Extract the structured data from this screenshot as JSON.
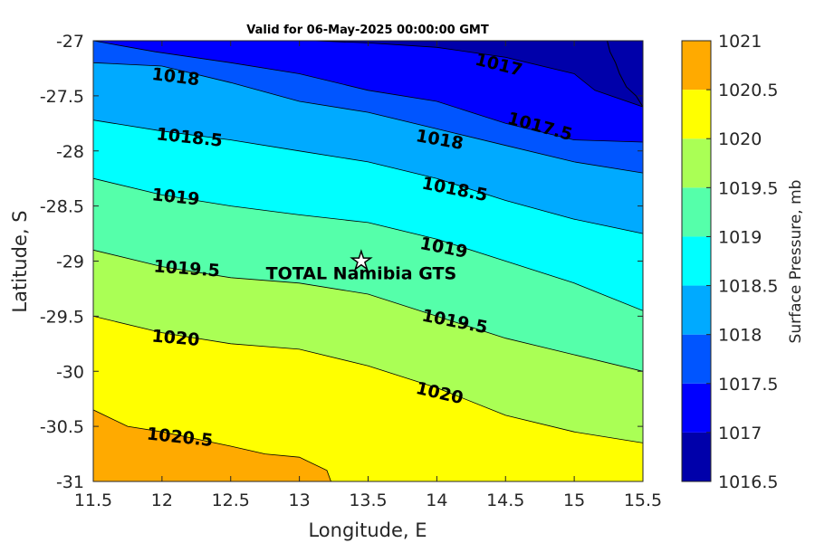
{
  "chart_data": {
    "type": "contour",
    "title": "Valid for 06-May-2025 00:00:00 GMT",
    "xlabel": "Longitude, E",
    "ylabel": "Latitude, S",
    "xlim": [
      11.5,
      15.5
    ],
    "ylim": [
      -31,
      -27
    ],
    "xticks": [
      "11.5",
      "12",
      "12.5",
      "13",
      "13.5",
      "14",
      "14.5",
      "15",
      "15.5"
    ],
    "yticks": [
      "-27",
      "-27.5",
      "-28",
      "-28.5",
      "-29",
      "-29.5",
      "-30",
      "-30.5",
      "-31"
    ],
    "colorbar": {
      "label": "Surface Pressure, mb",
      "levels": [
        1016.5,
        1017,
        1017.5,
        1018,
        1018.5,
        1019,
        1019.5,
        1020,
        1020.5,
        1021
      ],
      "tick_labels": [
        "1021",
        "1020.5",
        "1020",
        "1019.5",
        "1019",
        "1018.5",
        "1018",
        "1017.5",
        "1017",
        "1016.5"
      ],
      "colors": [
        "#0000aa",
        "#0000ff",
        "#0055ff",
        "#00aaff",
        "#00ffff",
        "#55ffaa",
        "#aaff55",
        "#ffff00",
        "#ffaa00",
        "#ff5500"
      ]
    },
    "contours": [
      {
        "level": 1017,
        "label": "1017",
        "points": [
          [
            13.1,
            -27.0
          ],
          [
            13.5,
            -27.02
          ],
          [
            14.0,
            -27.06
          ],
          [
            14.5,
            -27.15
          ],
          [
            15.0,
            -27.3
          ],
          [
            15.15,
            -27.45
          ],
          [
            15.5,
            -27.6
          ]
        ]
      },
      {
        "level": 1017.5,
        "label": "1017.5",
        "points": [
          [
            11.5,
            -27.0
          ],
          [
            11.95,
            -27.1
          ],
          [
            12.5,
            -27.2
          ],
          [
            13.0,
            -27.3
          ],
          [
            13.5,
            -27.45
          ],
          [
            14.0,
            -27.55
          ],
          [
            14.5,
            -27.75
          ],
          [
            15.0,
            -27.9
          ],
          [
            15.5,
            -27.92
          ]
        ]
      },
      {
        "level": 1018,
        "label": "1018",
        "points": [
          [
            11.5,
            -27.2
          ],
          [
            12.0,
            -27.23
          ],
          [
            12.5,
            -27.38
          ],
          [
            13.0,
            -27.55
          ],
          [
            13.5,
            -27.65
          ],
          [
            14.0,
            -27.8
          ],
          [
            14.5,
            -27.95
          ],
          [
            15.0,
            -28.1
          ],
          [
            15.5,
            -28.2
          ]
        ]
      },
      {
        "level": 1018.5,
        "label": "1018.5",
        "points": [
          [
            11.5,
            -27.72
          ],
          [
            12.0,
            -27.82
          ],
          [
            12.5,
            -27.9
          ],
          [
            13.0,
            -28.0
          ],
          [
            13.5,
            -28.1
          ],
          [
            14.0,
            -28.25
          ],
          [
            14.5,
            -28.45
          ],
          [
            15.0,
            -28.62
          ],
          [
            15.5,
            -28.75
          ]
        ]
      },
      {
        "level": 1019,
        "label": "1019",
        "points": [
          [
            11.5,
            -28.25
          ],
          [
            12.0,
            -28.4
          ],
          [
            12.5,
            -28.5
          ],
          [
            13.0,
            -28.58
          ],
          [
            13.5,
            -28.65
          ],
          [
            14.0,
            -28.8
          ],
          [
            14.5,
            -29.0
          ],
          [
            15.0,
            -29.2
          ],
          [
            15.5,
            -29.45
          ]
        ]
      },
      {
        "level": 1019.5,
        "label": "1019.5",
        "points": [
          [
            11.5,
            -28.9
          ],
          [
            12.0,
            -29.05
          ],
          [
            12.5,
            -29.15
          ],
          [
            13.0,
            -29.2
          ],
          [
            13.5,
            -29.3
          ],
          [
            14.0,
            -29.5
          ],
          [
            14.5,
            -29.7
          ],
          [
            15.0,
            -29.85
          ],
          [
            15.5,
            -30.0
          ]
        ]
      },
      {
        "level": 1020,
        "label": "1020",
        "points": [
          [
            11.5,
            -29.5
          ],
          [
            12.0,
            -29.65
          ],
          [
            12.5,
            -29.75
          ],
          [
            13.0,
            -29.8
          ],
          [
            13.5,
            -29.95
          ],
          [
            14.0,
            -30.15
          ],
          [
            14.5,
            -30.4
          ],
          [
            15.0,
            -30.55
          ],
          [
            15.5,
            -30.65
          ]
        ]
      },
      {
        "level": 1020.5,
        "label": "1020.5",
        "points": [
          [
            11.5,
            -30.35
          ],
          [
            11.75,
            -30.5
          ],
          [
            12.0,
            -30.55
          ],
          [
            12.5,
            -30.68
          ],
          [
            12.75,
            -30.75
          ],
          [
            13.0,
            -30.78
          ],
          [
            13.2,
            -30.9
          ],
          [
            13.23,
            -31.0
          ]
        ]
      }
    ],
    "contour_labels": [
      {
        "text": "1017",
        "lon": 14.45,
        "lat": -27.22,
        "angle": 14
      },
      {
        "text": "1017.5",
        "lon": 14.75,
        "lat": -27.78,
        "angle": 15
      },
      {
        "text": "1018",
        "lon": 12.1,
        "lat": -27.33,
        "angle": 7
      },
      {
        "text": "1018",
        "lon": 14.02,
        "lat": -27.9,
        "angle": 10
      },
      {
        "text": "1018.5",
        "lon": 12.2,
        "lat": -27.88,
        "angle": 6
      },
      {
        "text": "1018.5",
        "lon": 14.13,
        "lat": -28.35,
        "angle": 11
      },
      {
        "text": "1019",
        "lon": 12.1,
        "lat": -28.42,
        "angle": 6
      },
      {
        "text": "1019",
        "lon": 14.05,
        "lat": -28.88,
        "angle": 11
      },
      {
        "text": "1019.5",
        "lon": 12.18,
        "lat": -29.07,
        "angle": 4
      },
      {
        "text": "1019.5",
        "lon": 14.13,
        "lat": -29.55,
        "angle": 11
      },
      {
        "text": "1020",
        "lon": 12.1,
        "lat": -29.7,
        "angle": 5
      },
      {
        "text": "1020",
        "lon": 14.02,
        "lat": -30.2,
        "angle": 13
      },
      {
        "text": "1020.5",
        "lon": 12.13,
        "lat": -30.6,
        "angle": 6
      }
    ],
    "site": {
      "name": "TOTAL Namibia GTS",
      "lon": 13.45,
      "lat": -29.0
    },
    "coastline": [
      [
        15.24,
        -27.0
      ],
      [
        15.26,
        -27.1
      ],
      [
        15.3,
        -27.2
      ],
      [
        15.33,
        -27.3
      ],
      [
        15.38,
        -27.42
      ],
      [
        15.45,
        -27.5
      ],
      [
        15.5,
        -27.6
      ]
    ]
  }
}
